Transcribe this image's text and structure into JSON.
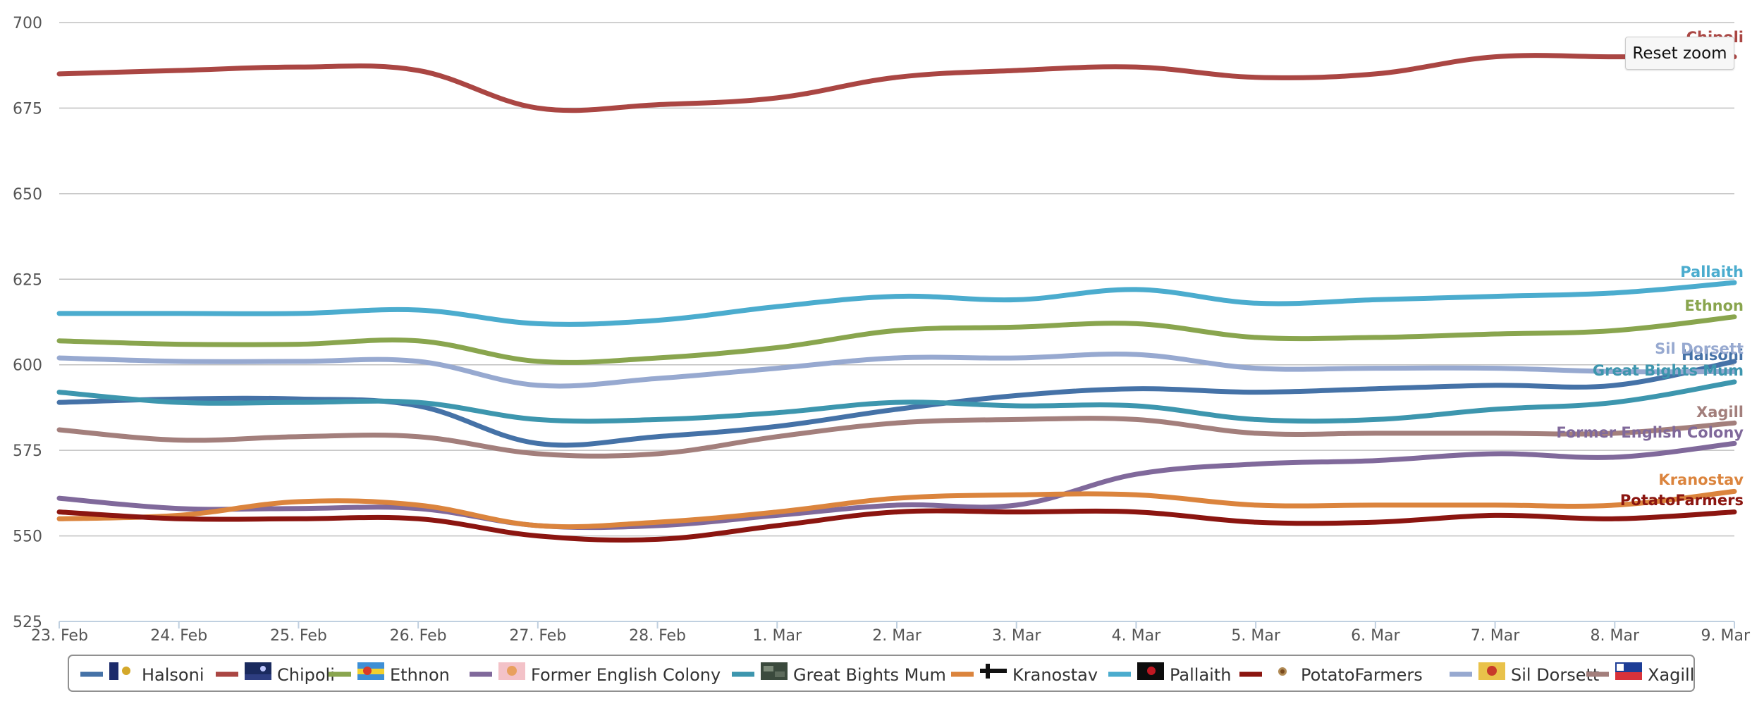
{
  "chart_data": {
    "type": "line",
    "title": "",
    "xlabel": "",
    "ylabel": "",
    "x": [
      "23. Feb",
      "24. Feb",
      "25. Feb",
      "26. Feb",
      "27. Feb",
      "28. Feb",
      "1. Mar",
      "2. Mar",
      "3. Mar",
      "4. Mar",
      "5. Mar",
      "6. Mar",
      "7. Mar",
      "8. Mar",
      "9. Mar"
    ],
    "ylim": [
      525,
      700
    ],
    "yticks": [
      525,
      550,
      575,
      600,
      625,
      650,
      675,
      700
    ],
    "grid": true,
    "legend_position": "bottom-center",
    "series": [
      {
        "name": "Halsoni",
        "color": "#4572a7",
        "flag_icon": "halsoni-flag-icon",
        "values": [
          589,
          590,
          590,
          588,
          577,
          579,
          582,
          587,
          591,
          593,
          592,
          593,
          594,
          594,
          601
        ]
      },
      {
        "name": "Chipoli",
        "color": "#aa4643",
        "flag_icon": "chipoli-flag-icon",
        "values": [
          685,
          686,
          687,
          686,
          675,
          676,
          678,
          684,
          686,
          687,
          684,
          685,
          690,
          690,
          690
        ]
      },
      {
        "name": "Ethnon",
        "color": "#89a54e",
        "flag_icon": "ethnon-flag-icon",
        "values": [
          607,
          606,
          606,
          607,
          601,
          602,
          605,
          610,
          611,
          612,
          608,
          608,
          609,
          610,
          614
        ]
      },
      {
        "name": "Former English Colony",
        "color": "#80699b",
        "flag_icon": "former-english-colony-flag-icon",
        "values": [
          561,
          558,
          558,
          558,
          553,
          553,
          556,
          559,
          559,
          568,
          571,
          572,
          574,
          573,
          577
        ]
      },
      {
        "name": "Great Bights Mum",
        "color": "#3d96ae",
        "flag_icon": "great-bights-mum-flag-icon",
        "values": [
          592,
          589,
          589,
          589,
          584,
          584,
          586,
          589,
          588,
          588,
          584,
          584,
          587,
          589,
          595
        ]
      },
      {
        "name": "Kranostav",
        "color": "#db843d",
        "flag_icon": "kranostav-flag-icon",
        "values": [
          555,
          556,
          560,
          559,
          553,
          554,
          557,
          561,
          562,
          562,
          559,
          559,
          559,
          559,
          563
        ]
      },
      {
        "name": "Pallaith",
        "color": "#4bacce",
        "flag_icon": "pallaith-flag-icon",
        "values": [
          615,
          615,
          615,
          616,
          612,
          613,
          617,
          620,
          619,
          622,
          618,
          619,
          620,
          621,
          624
        ]
      },
      {
        "name": "PotatoFarmers",
        "color": "#8b1510",
        "flag_icon": "potatofarmers-flag-icon",
        "values": [
          557,
          555,
          555,
          555,
          550,
          549,
          553,
          557,
          557,
          557,
          554,
          554,
          556,
          555,
          557
        ]
      },
      {
        "name": "Sil Dorsett",
        "color": "#97a9d0",
        "flag_icon": "sil-dorsett-flag-icon",
        "values": [
          602,
          601,
          601,
          601,
          594,
          596,
          599,
          602,
          602,
          603,
          599,
          599,
          599,
          598,
          598
        ]
      },
      {
        "name": "Xagill",
        "color": "#a37f7c",
        "flag_icon": "xagill-flag-icon",
        "values": [
          581,
          578,
          579,
          579,
          574,
          574,
          579,
          583,
          584,
          584,
          580,
          580,
          580,
          580,
          583
        ]
      }
    ]
  },
  "reset_zoom_label": "Reset zoom"
}
